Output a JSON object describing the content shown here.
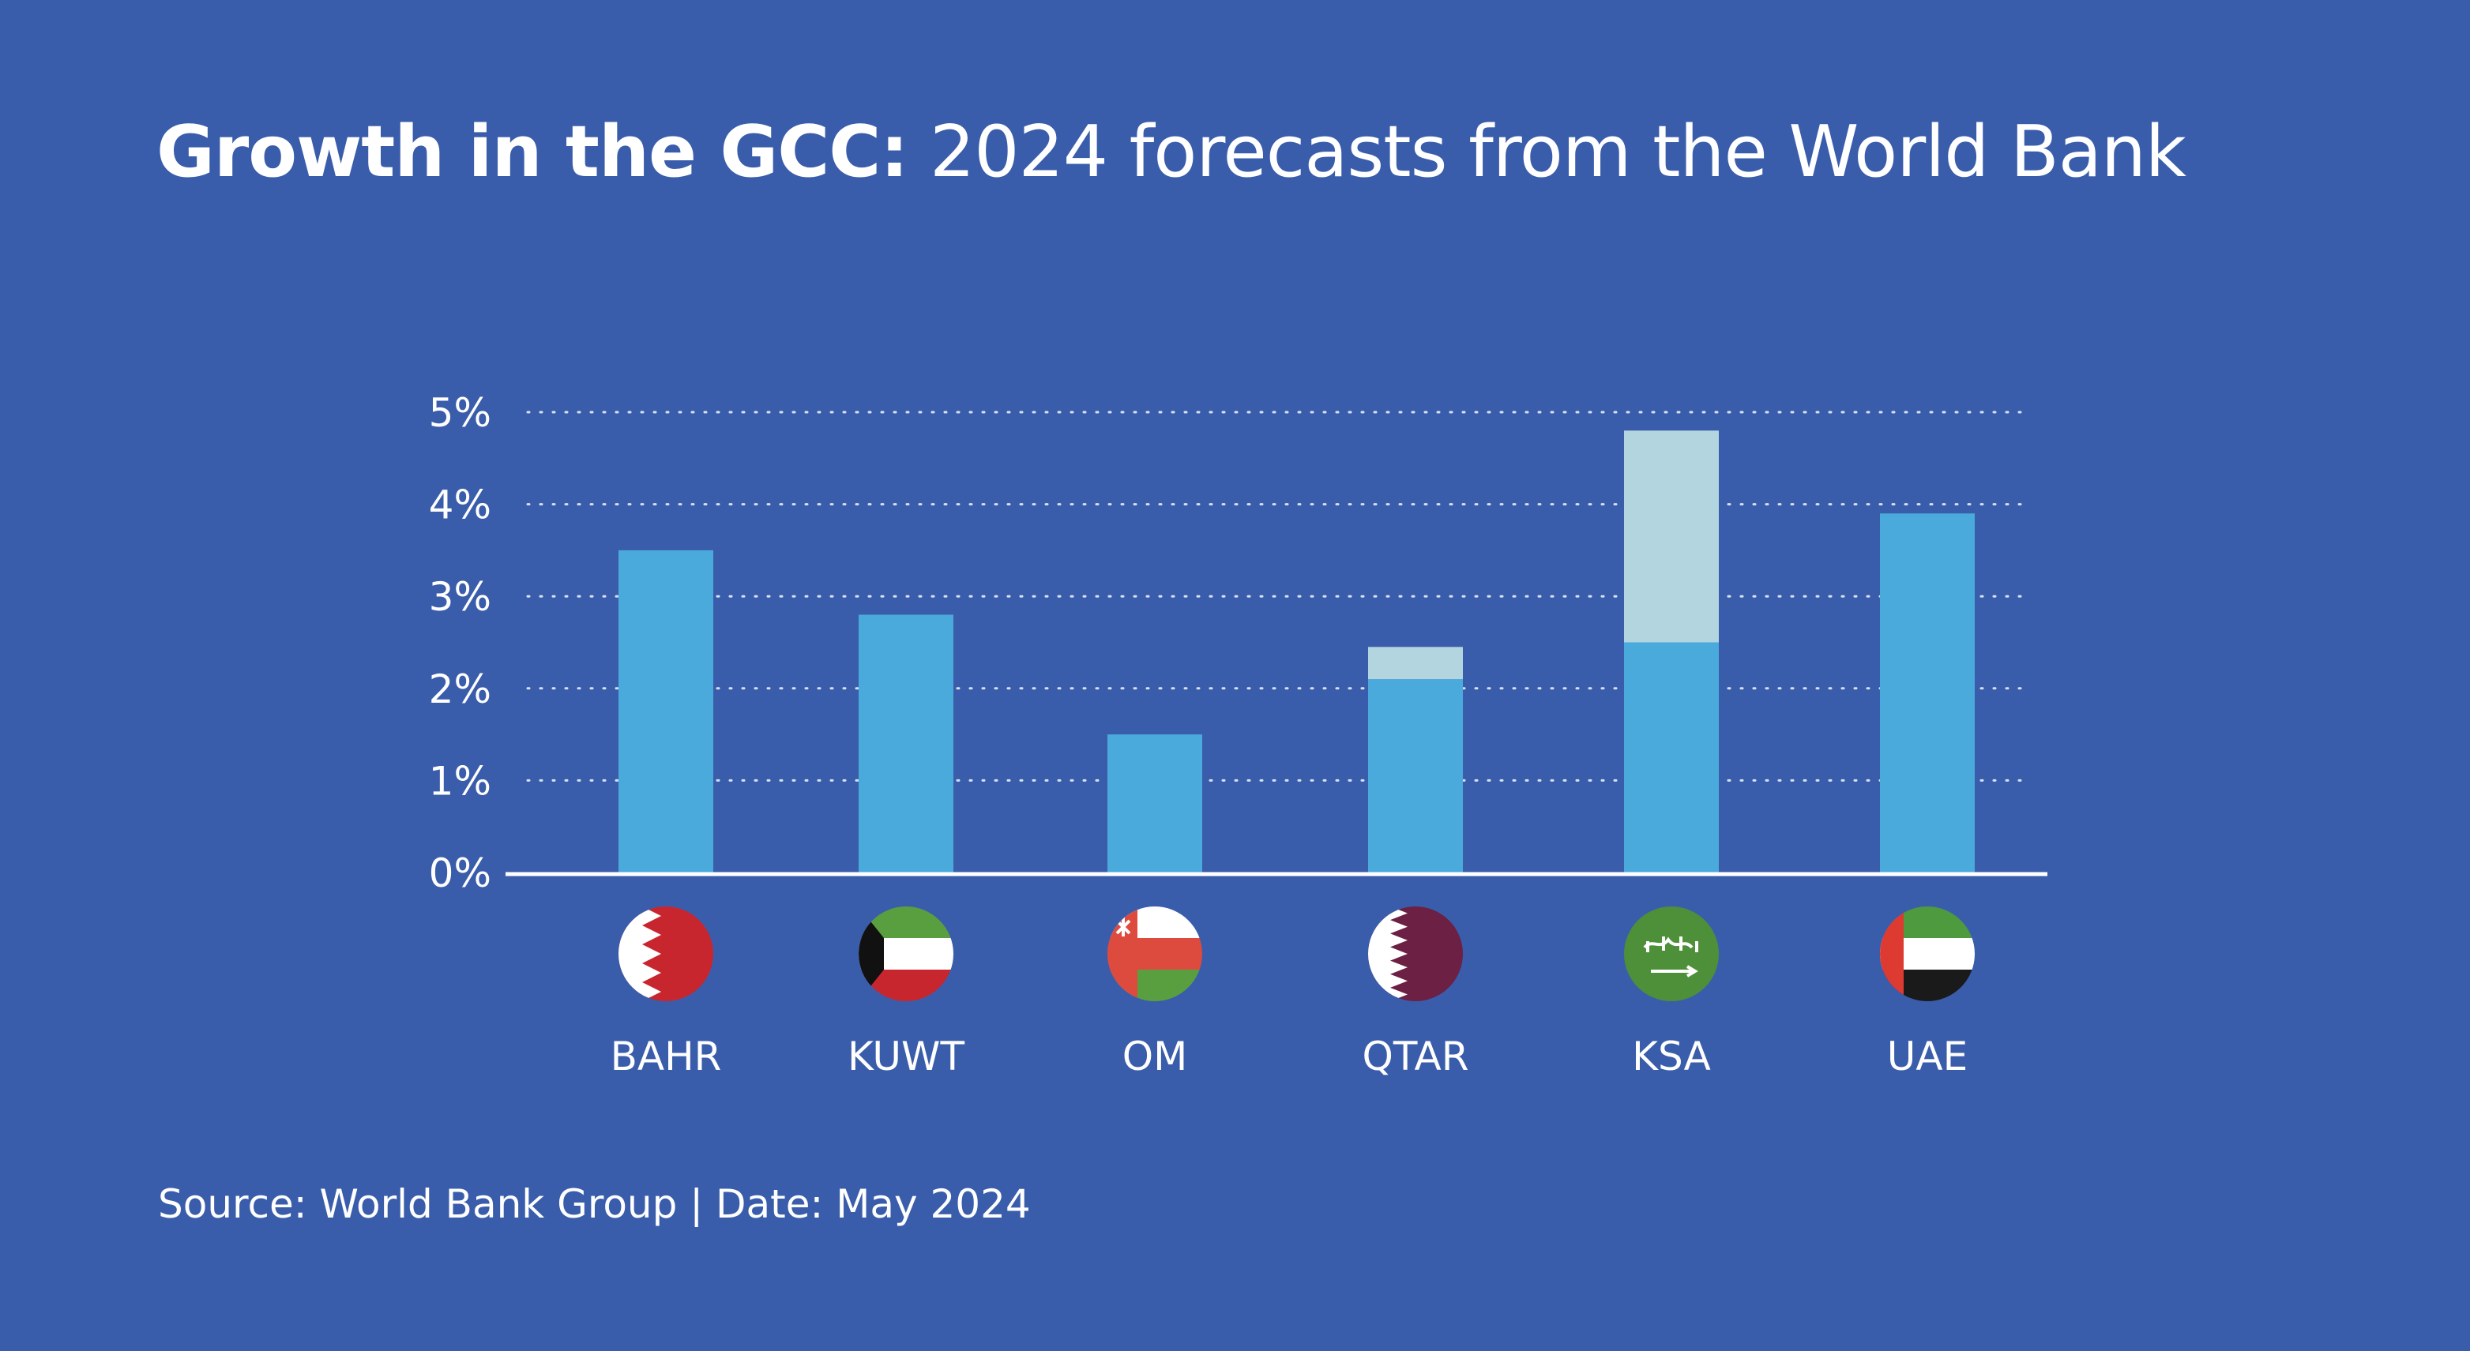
{
  "title": {
    "lead": "Growth in the GCC:",
    "rest": " 2024 forecasts from the World Bank"
  },
  "source": "Source: World Bank Group | Date: May 2024",
  "colors": {
    "background": "#3a5dab",
    "bar_main": "#4aaadb",
    "bar_extra": "#b3d5df",
    "axis": "#ffffff",
    "grid": "#d8e0f2"
  },
  "chart_data": {
    "type": "bar",
    "stacked": true,
    "categories": [
      "BAHR",
      "KUWT",
      "OM",
      "QTAR",
      "KSA",
      "UAE"
    ],
    "category_icons": [
      "bahrain-flag-icon",
      "kuwait-flag-icon",
      "oman-flag-icon",
      "qatar-flag-icon",
      "saudi-arabia-flag-icon",
      "uae-flag-icon"
    ],
    "series": [
      {
        "values": [
          3.5,
          2.8,
          1.5,
          2.1,
          2.5,
          3.9
        ]
      },
      {
        "values": [
          0,
          0,
          0,
          0.35,
          2.3,
          0
        ]
      }
    ],
    "yticks": [
      "0%",
      "1%",
      "2%",
      "3%",
      "4%",
      "5%"
    ],
    "ytick_values": [
      0,
      1,
      2,
      3,
      4,
      5
    ],
    "ylim": [
      0,
      5
    ],
    "grid": true,
    "legend": false
  }
}
